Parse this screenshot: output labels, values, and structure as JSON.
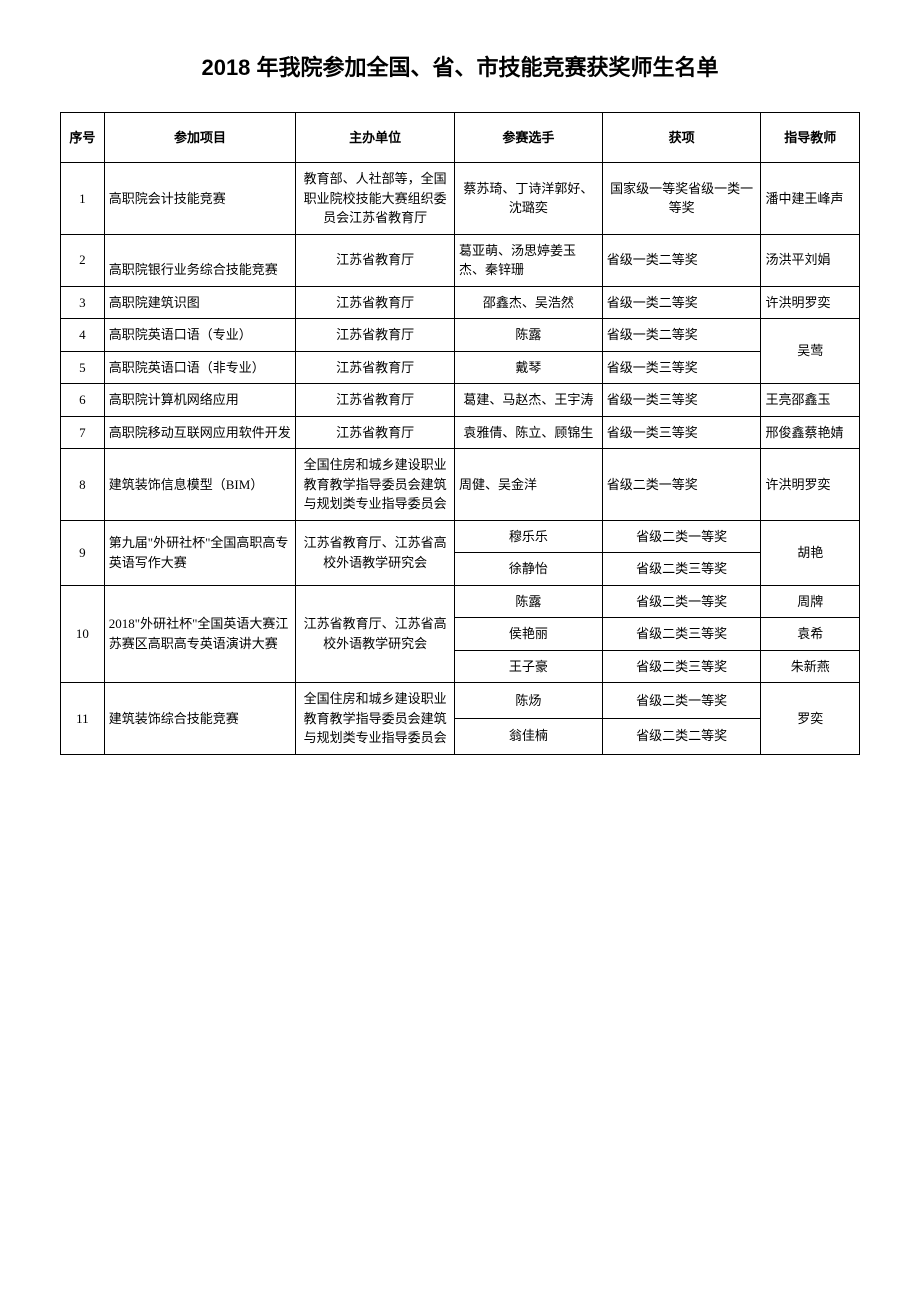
{
  "title": "2018 年我院参加全国、省、市技能竞赛获奖师生名单",
  "headers": {
    "seq": "序号",
    "project": "参加项目",
    "org": "主办单位",
    "player": "参赛选手",
    "award": "获项",
    "teacher": "指导教师"
  },
  "r1": {
    "seq": "1",
    "project": "高职院会计技能竞赛",
    "org": "教育部、人社部等，全国职业院校技能大赛组织委员会江苏省教育厅",
    "player": "蔡苏琦、丁诗洋郭好、沈璐奕",
    "award": "国家级一等奖省级一类一等奖",
    "teacher": "潘中建王峰声"
  },
  "r2": {
    "seq": "2",
    "project": "高职院银行业务综合技能竞赛",
    "org": "江苏省教育厅",
    "player": "葛亚萌、汤思婷姜玉杰、秦锌珊",
    "award": "省级一类二等奖",
    "teacher": "汤洪平刘娟"
  },
  "r3": {
    "seq": "3",
    "project": "高职院建筑识图",
    "org": "江苏省教育厅",
    "player": "邵鑫杰、吴浩然",
    "award": "省级一类二等奖",
    "teacher": "许洪明罗奕"
  },
  "r4": {
    "seq": "4",
    "project": "高职院英语口语（专业）",
    "org": "江苏省教育厅",
    "player": "陈露",
    "award": "省级一类二等奖",
    "teacher": "吴莺"
  },
  "r5": {
    "seq": "5",
    "project": "高职院英语口语（非专业）",
    "org": "江苏省教育厅",
    "player": "戴琴",
    "award": "省级一类三等奖"
  },
  "r6": {
    "seq": "6",
    "project": "高职院计算机网络应用",
    "org": "江苏省教育厅",
    "player": "葛建、马赵杰、王宇涛",
    "award": "省级一类三等奖",
    "teacher": "王亮邵鑫玉"
  },
  "r7": {
    "seq": "7",
    "project": "高职院移动互联网应用软件开发",
    "org": "江苏省教育厅",
    "player": "袁雅倩、陈立、顾锦生",
    "award": "省级一类三等奖",
    "teacher": "邢俊鑫蔡艳婧"
  },
  "r8": {
    "seq": "8",
    "project": "建筑装饰信息模型（BIM）",
    "org": "全国住房和城乡建设职业教育教学指导委员会建筑与规划类专业指导委员会",
    "player": "周健、吴金洋",
    "award": "省级二类一等奖",
    "teacher": "许洪明罗奕"
  },
  "r9": {
    "seq": "9",
    "project": "第九届\"外研社杯\"全国高职高专英语写作大赛",
    "org": "江苏省教育厅、江苏省高校外语教学研究会",
    "player_a": "穆乐乐",
    "award_a": "省级二类一等奖",
    "player_b": "徐静怡",
    "award_b": "省级二类三等奖",
    "teacher": "胡艳"
  },
  "r10": {
    "seq": "10",
    "project": "2018\"外研社杯\"全国英语大赛江苏赛区高职高专英语演讲大赛",
    "org": "江苏省教育厅、江苏省高校外语教学研究会",
    "player_a": "陈露",
    "award_a": "省级二类一等奖",
    "teacher_a": "周牌",
    "player_b": "侯艳丽",
    "award_b": "省级二类三等奖",
    "teacher_b": "袁希",
    "player_c": "王子豪",
    "award_c": "省级二类三等奖",
    "teacher_c": "朱新燕"
  },
  "r11": {
    "seq": "11",
    "project": "建筑装饰综合技能竞赛",
    "org": "全国住房和城乡建设职业教育教学指导委员会建筑与规划类专业指导委员会",
    "player_a": "陈炀",
    "award_a": "省级二类一等奖",
    "player_b": "翁佳楠",
    "award_b": "省级二类二等奖",
    "teacher": "罗奕"
  }
}
